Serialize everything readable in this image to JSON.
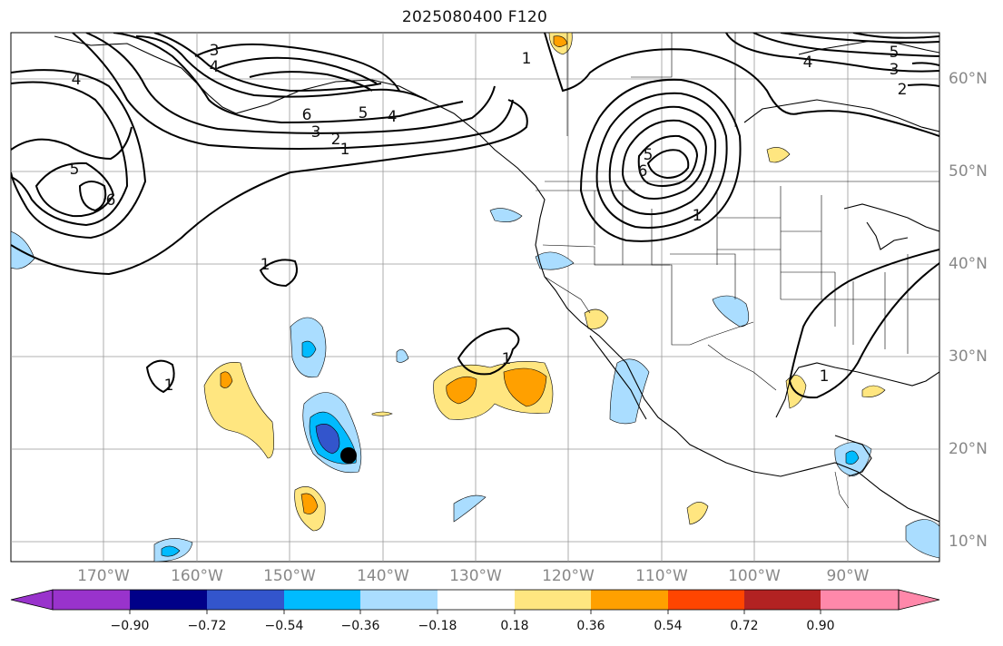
{
  "title": "2025080400 F120",
  "lat_labels": [
    "60°N",
    "50°N",
    "40°N",
    "30°N",
    "20°N",
    "10°N"
  ],
  "lon_labels": [
    "170°W",
    "160°W",
    "150°W",
    "140°W",
    "130°W",
    "120°W",
    "110°W",
    "100°W",
    "90°W"
  ],
  "colorbar": {
    "ticks": [
      "−0.90",
      "−0.72",
      "−0.54",
      "−0.36",
      "−0.18",
      "0.18",
      "0.36",
      "0.54",
      "0.72",
      "0.90"
    ],
    "colors": [
      "#9933cc",
      "#000088",
      "#3355cc",
      "#00bbff",
      "#aaddff",
      "#ffffff",
      "#ffe680",
      "#ffa000",
      "#ff4500",
      "#b22222",
      "#ff88aa"
    ]
  },
  "contour_labels": [
    "3",
    "4",
    "6",
    "5",
    "4",
    "3",
    "2",
    "1",
    "1",
    "5",
    "6",
    "4",
    "1",
    "5",
    "3",
    "2",
    "4",
    "5",
    "6",
    "1",
    "1",
    "1",
    "1"
  ]
}
